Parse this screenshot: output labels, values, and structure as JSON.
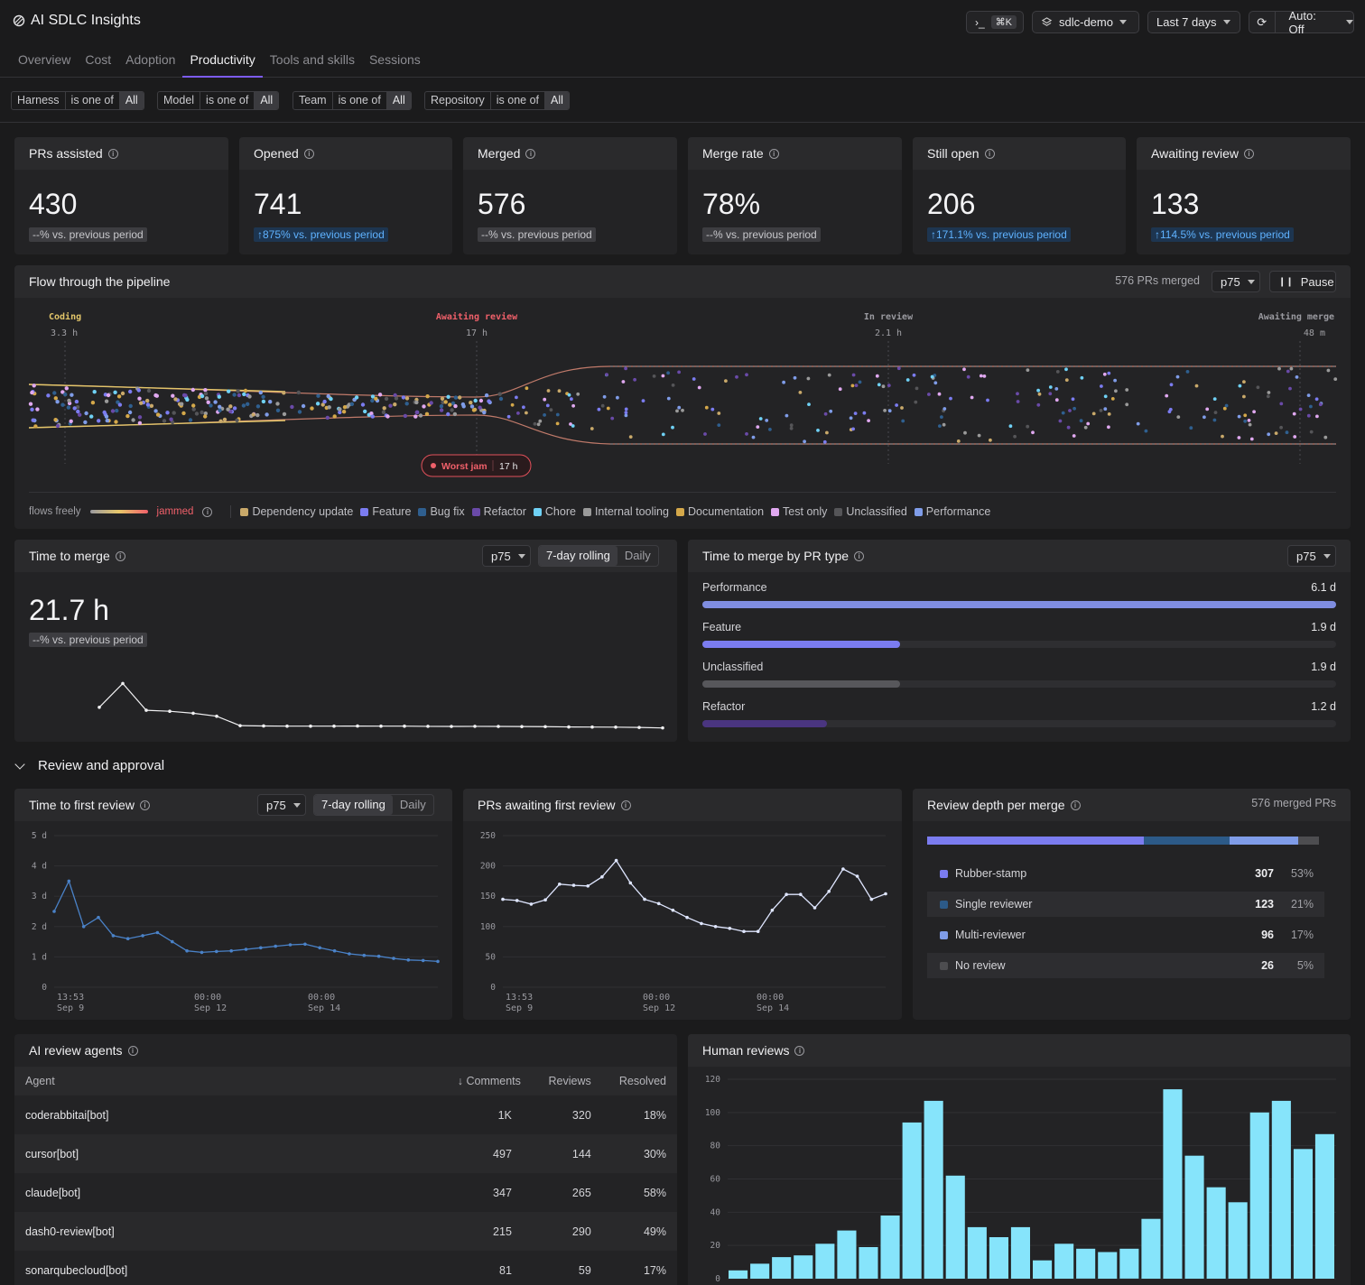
{
  "app_title": "AI SDLC Insights",
  "toolbar": {
    "cmd_shortcut": "⌘K",
    "workspace": "sdlc-demo",
    "range": "Last 7 days",
    "auto": "Auto: Off"
  },
  "tabs": [
    "Overview",
    "Cost",
    "Adoption",
    "Productivity",
    "Tools and skills",
    "Sessions"
  ],
  "active_tab": "Productivity",
  "filters": [
    {
      "field": "Harness",
      "op": "is one of",
      "value": "All"
    },
    {
      "field": "Model",
      "op": "is one of",
      "value": "All"
    },
    {
      "field": "Team",
      "op": "is one of",
      "value": "All"
    },
    {
      "field": "Repository",
      "op": "is one of",
      "value": "All"
    }
  ],
  "kpis": [
    {
      "label": "PRs assisted",
      "value": "430",
      "delta": "--% vs. previous period",
      "up": false
    },
    {
      "label": "Opened",
      "value": "741",
      "delta": "↑875% vs. previous period",
      "up": true
    },
    {
      "label": "Merged",
      "value": "576",
      "delta": "--% vs. previous period",
      "up": false
    },
    {
      "label": "Merge rate",
      "value": "78%",
      "delta": "--% vs. previous period",
      "up": false
    },
    {
      "label": "Still open",
      "value": "206",
      "delta": "↑171.1% vs. previous period",
      "up": true
    },
    {
      "label": "Awaiting review",
      "value": "133",
      "delta": "↑114.5% vs. previous period",
      "up": true
    }
  ],
  "pipeline": {
    "title": "Flow through the pipeline",
    "merged_count": "576 PRs merged",
    "percentile": "p75",
    "pause": "Pause",
    "stages": [
      {
        "name": "Coding",
        "time": "3.3 h",
        "color": "#e3c66a"
      },
      {
        "name": "Awaiting review",
        "time": "17 h",
        "color": "#f0606a"
      },
      {
        "name": "In review",
        "time": "2.1 h",
        "color": "#9a9aa0"
      },
      {
        "name": "Awaiting merge",
        "time": "48 m",
        "color": "#9a9aa0"
      }
    ],
    "worst_jam_label": "Worst jam",
    "worst_jam_time": "17 h",
    "legend_free": "flows freely",
    "legend_jammed": "jammed",
    "types": [
      {
        "name": "Dependency update",
        "color": "#c9a96a"
      },
      {
        "name": "Feature",
        "color": "#7b7cf0"
      },
      {
        "name": "Bug fix",
        "color": "#2f5f8f"
      },
      {
        "name": "Refactor",
        "color": "#6a4aa8"
      },
      {
        "name": "Chore",
        "color": "#6fd1f5"
      },
      {
        "name": "Internal tooling",
        "color": "#9a9a9a"
      },
      {
        "name": "Documentation",
        "color": "#d4a84a"
      },
      {
        "name": "Test only",
        "color": "#e0a8f0"
      },
      {
        "name": "Unclassified",
        "color": "#555558"
      },
      {
        "name": "Performance",
        "color": "#7f9ce8"
      }
    ]
  },
  "time_to_merge": {
    "title": "Time to merge",
    "percentile": "p75",
    "mode_a": "7-day rolling",
    "mode_b": "Daily",
    "value": "21.7 h",
    "delta": "--% vs. previous period"
  },
  "ttm_by_type": {
    "title": "Time to merge by PR type",
    "percentile": "p75",
    "rows": [
      {
        "name": "Performance",
        "value": "6.1 d",
        "days": 6.1,
        "color": "#7f8de0"
      },
      {
        "name": "Feature",
        "value": "1.9 d",
        "days": 1.9,
        "color": "#7b7cf0"
      },
      {
        "name": "Unclassified",
        "value": "1.9 d",
        "days": 1.9,
        "color": "#57575b"
      },
      {
        "name": "Refactor",
        "value": "1.2 d",
        "days": 1.2,
        "color": "#4a3580"
      }
    ]
  },
  "section_review": "Review and approval",
  "first_review": {
    "title": "Time to first review",
    "percentile": "p75",
    "mode_a": "7-day rolling",
    "mode_b": "Daily"
  },
  "awaiting_first": {
    "title": "PRs awaiting first review"
  },
  "review_depth": {
    "title": "Review depth per merge",
    "total": "576 merged PRs",
    "rows": [
      {
        "name": "Rubber-stamp",
        "count": "307",
        "pct": "53%",
        "frac": 0.53,
        "color": "#7b7cf0"
      },
      {
        "name": "Single reviewer",
        "count": "123",
        "pct": "21%",
        "frac": 0.21,
        "color": "#2c5a88"
      },
      {
        "name": "Multi-reviewer",
        "count": "96",
        "pct": "17%",
        "frac": 0.17,
        "color": "#7f9ce8"
      },
      {
        "name": "No review",
        "count": "26",
        "pct": "5%",
        "frac": 0.05,
        "color": "#4d4d50"
      }
    ]
  },
  "agents": {
    "title": "AI review agents",
    "columns": [
      "Agent",
      "↓ Comments",
      "Reviews",
      "Resolved"
    ],
    "rows": [
      [
        "coderabbitai[bot]",
        "1K",
        "320",
        "18%"
      ],
      [
        "cursor[bot]",
        "497",
        "144",
        "30%"
      ],
      [
        "claude[bot]",
        "347",
        "265",
        "58%"
      ],
      [
        "dash0-review[bot]",
        "215",
        "290",
        "49%"
      ],
      [
        "sonarqubecloud[bot]",
        "81",
        "59",
        "17%"
      ]
    ]
  },
  "human_reviews": {
    "title": "Human reviews"
  },
  "chart_data": [
    {
      "type": "line",
      "name": "time_to_merge",
      "x": [
        1,
        2,
        3,
        4,
        5,
        6,
        7,
        8,
        9,
        10,
        11,
        12,
        13,
        14,
        15,
        16,
        17,
        18,
        19,
        20,
        21,
        22,
        23,
        24,
        25
      ],
      "values": [
        2.2,
        4.6,
        1.9,
        1.8,
        1.6,
        1.3,
        0.35,
        0.32,
        0.3,
        0.3,
        0.3,
        0.31,
        0.3,
        0.3,
        0.28,
        0.27,
        0.28,
        0.27,
        0.26,
        0.25,
        0.22,
        0.21,
        0.2,
        0.17,
        0.12
      ],
      "ylim": [
        0,
        8
      ]
    },
    {
      "type": "line",
      "name": "time_to_first_review",
      "x_ticks": [
        {
          "time": "13:53",
          "date": "Sep 9"
        },
        {
          "time": "00:00",
          "date": "Sep 12"
        },
        {
          "time": "00:00",
          "date": "Sep 14"
        }
      ],
      "y_ticks": [
        "5 d",
        "4 d",
        "3 d",
        "2 d",
        "1 d",
        "0"
      ],
      "values": [
        2.5,
        3.5,
        2.0,
        2.3,
        1.7,
        1.6,
        1.7,
        1.8,
        1.5,
        1.2,
        1.15,
        1.18,
        1.2,
        1.25,
        1.3,
        1.35,
        1.4,
        1.42,
        1.3,
        1.2,
        1.1,
        1.05,
        1.02,
        0.95,
        0.9,
        0.88,
        0.85
      ],
      "ylim": [
        0,
        5
      ]
    },
    {
      "type": "line",
      "name": "prs_awaiting_first_review",
      "x_ticks": [
        {
          "time": "13:53",
          "date": "Sep 9"
        },
        {
          "time": "00:00",
          "date": "Sep 12"
        },
        {
          "time": "00:00",
          "date": "Sep 14"
        }
      ],
      "y_ticks": [
        "250",
        "200",
        "150",
        "100",
        "50",
        "0"
      ],
      "values": [
        145,
        143,
        137,
        144,
        170,
        168,
        167,
        182,
        209,
        172,
        145,
        138,
        127,
        115,
        105,
        100,
        97,
        92,
        92,
        127,
        153,
        153,
        131,
        158,
        195,
        183,
        145,
        154
      ],
      "ylim": [
        0,
        250
      ]
    },
    {
      "type": "bar",
      "name": "human_reviews",
      "y_ticks": [
        "120",
        "100",
        "80",
        "60",
        "40",
        "20",
        "0"
      ],
      "values": [
        5,
        9,
        13,
        14,
        21,
        29,
        19,
        38,
        94,
        107,
        62,
        31,
        25,
        31,
        11,
        21,
        18,
        16,
        18,
        36,
        114,
        74,
        55,
        46,
        100,
        107,
        78,
        87
      ],
      "ylim": [
        0,
        120
      ]
    }
  ]
}
